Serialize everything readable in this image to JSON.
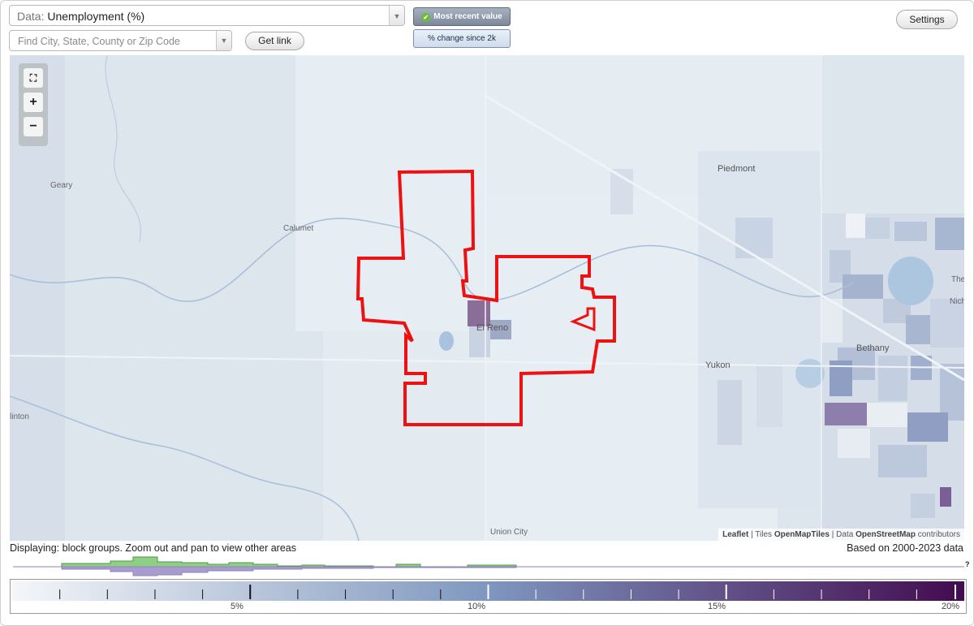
{
  "controls": {
    "data_prefix": "Data:",
    "data_value": "Unemployment (%)",
    "search_placeholder": "Find City, State, County or Zip Code",
    "get_link": "Get link",
    "mode_recent": "Most recent value",
    "mode_change": "% change since 2k",
    "settings": "Settings"
  },
  "map": {
    "towns": {
      "geary": "Geary",
      "calumet": "Calumet",
      "piedmont": "Piedmont",
      "el_reno": "El Reno",
      "yukon": "Yukon",
      "bethany": "Bethany",
      "union_city": "Union City",
      "the": "The",
      "nich": "Nich",
      "hinton": "linton"
    },
    "attribution": {
      "leaflet": "Leaflet",
      "sep1": " | Tiles ",
      "tiles": "OpenMapTiles",
      "sep2": " | Data ",
      "data": "OpenStreetMap",
      "contrib": " contributors"
    },
    "highlight_color": "#ee1111",
    "icons": [
      "fit-bounds-icon",
      "plus-icon",
      "minus-icon"
    ]
  },
  "footer": {
    "displaying": "Displaying: block groups. Zoom out and pan to view other areas",
    "based_on": "Based on 2000-2023 data",
    "unknown_mark": "?"
  },
  "legend": {
    "labels": [
      "5%",
      "10%",
      "15%",
      "20%"
    ],
    "min": 0,
    "max": 20,
    "color_low": "#f4f6f9",
    "color_mid": "#7f97be",
    "color_high": "#430b4f"
  }
}
